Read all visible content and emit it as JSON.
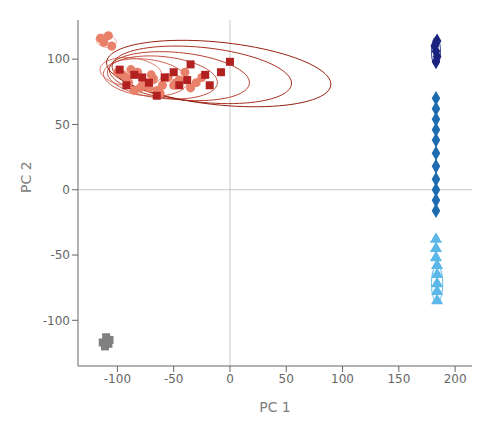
{
  "chart_data": {
    "type": "scatter",
    "xlabel": "PC 1",
    "ylabel": "PC 2",
    "xlim": [
      -135,
      215
    ],
    "ylim": [
      -135,
      130
    ],
    "xticks": [
      -100,
      -50,
      0,
      50,
      100,
      150,
      200
    ],
    "yticks": [
      -100,
      -50,
      0,
      50,
      100
    ],
    "grid": false,
    "reference_lines": [
      {
        "y": 0,
        "color": "#bbbbbb"
      },
      {
        "x": 0,
        "color": "#bbbbbb"
      }
    ],
    "ellipses": [
      {
        "cx": -110,
        "cy": 114,
        "width": 18,
        "height": 10,
        "angle": -10,
        "color": "#F0A090"
      },
      {
        "cx": -88,
        "cy": 90,
        "width": 55,
        "height": 22,
        "angle": -5,
        "color": "#E07060"
      },
      {
        "cx": -75,
        "cy": 86,
        "width": 75,
        "height": 28,
        "angle": -5,
        "color": "#D06050"
      },
      {
        "cx": -60,
        "cy": 86,
        "width": 98,
        "height": 32,
        "angle": -5,
        "color": "#C05040"
      },
      {
        "cx": -45,
        "cy": 87,
        "width": 125,
        "height": 36,
        "angle": -5,
        "color": "#B84030"
      },
      {
        "cx": -25,
        "cy": 88,
        "width": 160,
        "height": 42,
        "angle": -5,
        "color": "#A83020"
      },
      {
        "cx": -10,
        "cy": 89,
        "width": 200,
        "height": 48,
        "angle": -5,
        "color": "#982010"
      },
      {
        "cx": 183,
        "cy": 106,
        "width": 8,
        "height": 22,
        "angle": 0,
        "color": "#1A237E"
      },
      {
        "cx": 184,
        "cy": -72,
        "width": 10,
        "height": 28,
        "angle": 0,
        "color": "#5BB8E8"
      }
    ],
    "series": [
      {
        "color": "#E8806A",
        "marker": "circle",
        "x": [
          -112,
          -108,
          -105,
          -115,
          -100,
          -95,
          -90,
          -88,
          -80,
          -75,
          -70,
          -85,
          -68,
          -60,
          -55,
          -72,
          -45,
          -40,
          -35,
          -30,
          -25,
          -50,
          -62,
          -78,
          -92,
          -82,
          -65,
          -48
        ],
        "y": [
          113,
          118,
          110,
          116,
          90,
          88,
          82,
          92,
          78,
          82,
          88,
          76,
          85,
          80,
          86,
          78,
          84,
          90,
          78,
          82,
          86,
          80,
          74,
          80,
          86,
          90,
          76,
          82
        ]
      },
      {
        "color": "#B22020",
        "marker": "square",
        "x": [
          -98,
          -85,
          -72,
          -58,
          -45,
          -35,
          -22,
          -8,
          -18,
          -65,
          -78,
          -92,
          -50,
          -38,
          0
        ],
        "y": [
          92,
          88,
          82,
          86,
          80,
          96,
          88,
          90,
          80,
          72,
          86,
          80,
          90,
          84,
          98
        ]
      },
      {
        "color": "#1A237E",
        "marker": "diamond",
        "x": [
          182,
          183,
          184,
          184,
          183
        ],
        "y": [
          110,
          106,
          102,
          114,
          98
        ]
      },
      {
        "color": "#1E6BB0",
        "marker": "diamond",
        "line_style": "solid",
        "x": [
          183,
          183,
          183,
          183,
          183,
          183,
          183,
          183,
          183,
          183,
          183
        ],
        "y": [
          70,
          62,
          54,
          46,
          38,
          28,
          18,
          8,
          0,
          -8,
          -16
        ]
      },
      {
        "color": "#5BB8E8",
        "marker": "triangle",
        "line_style": "solid",
        "x": [
          183,
          183,
          183,
          184,
          184,
          184,
          184,
          184
        ],
        "y": [
          -38,
          -45,
          -52,
          -58,
          -65,
          -72,
          -78,
          -85
        ]
      },
      {
        "color": "#808080",
        "marker": "square",
        "x": [
          -110,
          -113,
          -107,
          -111,
          -108
        ],
        "y": [
          -113,
          -117,
          -115,
          -120,
          -118
        ]
      }
    ]
  }
}
